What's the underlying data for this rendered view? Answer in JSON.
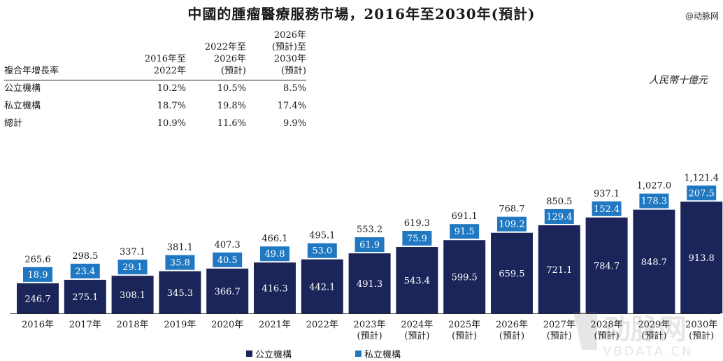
{
  "title": "中國的腫瘤醫療服務市場，2016年至2030年(預計)",
  "source_mark": "@动脉网",
  "unit_label": "人民幣十億元",
  "cagr_table": {
    "row_header": "複合年增長率",
    "columns": [
      "2016年至\n2022年",
      "2022年至\n2026年\n(預計)",
      "2026年\n(預計)至\n2030年\n(預計)"
    ],
    "rows": [
      {
        "label": "公立機構",
        "values": [
          "10.2%",
          "10.5%",
          "8.5%"
        ]
      },
      {
        "label": "私立機構",
        "values": [
          "18.7%",
          "19.8%",
          "17.4%"
        ]
      },
      {
        "label": "總計",
        "values": [
          "10.9%",
          "11.6%",
          "9.9%"
        ]
      }
    ]
  },
  "chart_data": {
    "type": "bar",
    "stacked": true,
    "categories": [
      "2016年",
      "2017年",
      "2018年",
      "2019年",
      "2020年",
      "2021年",
      "2022年",
      "2023年\n(預計)",
      "2024年\n(預計)",
      "2025年\n(預計)",
      "2026年\n(預計)",
      "2027年\n(預計)",
      "2028年\n(預計)",
      "2029年\n(預計)",
      "2030年\n(預計)"
    ],
    "series": [
      {
        "name": "公立機構",
        "color": "#1c2559",
        "values": [
          246.7,
          275.1,
          308.1,
          345.3,
          366.7,
          416.3,
          442.1,
          491.3,
          543.4,
          599.5,
          659.5,
          721.1,
          784.7,
          848.7,
          913.8
        ]
      },
      {
        "name": "私立機構",
        "color": "#1f78c1",
        "values": [
          18.9,
          23.4,
          29.1,
          35.8,
          40.5,
          49.8,
          53.0,
          61.9,
          75.9,
          91.5,
          109.2,
          129.4,
          152.4,
          178.3,
          207.5
        ]
      }
    ],
    "totals": [
      "265.6",
      "298.5",
      "337.1",
      "381.1",
      "407.3",
      "466.1",
      "495.1",
      "553.2",
      "619.3",
      "691.1",
      "768.7",
      "850.5",
      "937.1",
      "1,027.0",
      "1,121.4"
    ],
    "ylim": [
      0,
      1121.4
    ],
    "legend_position": "bottom"
  },
  "watermark": {
    "brand": "动脉网",
    "site": "VBDATA.CN"
  }
}
